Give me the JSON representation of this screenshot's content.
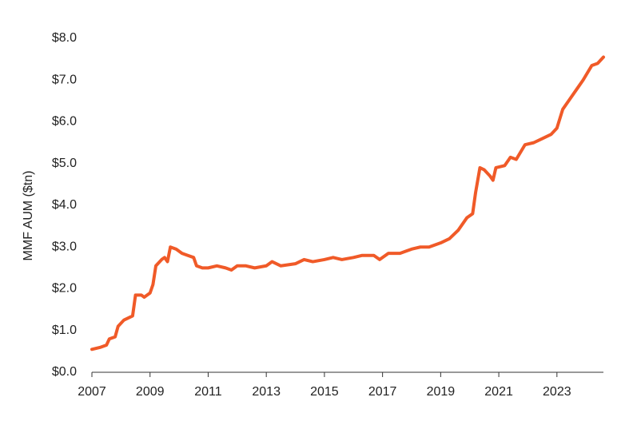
{
  "chart_data": {
    "type": "line",
    "y_label": "MMF AUM ($tn)",
    "x": [
      2007.0,
      2007.3,
      2007.5,
      2007.6,
      2007.8,
      2007.9,
      2008.1,
      2008.4,
      2008.5,
      2008.7,
      2008.8,
      2009.0,
      2009.1,
      2009.2,
      2009.4,
      2009.5,
      2009.6,
      2009.7,
      2009.9,
      2010.1,
      2010.3,
      2010.5,
      2010.6,
      2010.8,
      2011.0,
      2011.3,
      2011.6,
      2011.8,
      2012.0,
      2012.3,
      2012.6,
      2013.0,
      2013.2,
      2013.5,
      2014.0,
      2014.3,
      2014.6,
      2015.0,
      2015.3,
      2015.6,
      2016.0,
      2016.3,
      2016.7,
      2016.9,
      2017.2,
      2017.6,
      2018.0,
      2018.3,
      2018.6,
      2019.0,
      2019.3,
      2019.6,
      2019.9,
      2020.1,
      2020.2,
      2020.35,
      2020.5,
      2020.7,
      2020.8,
      2020.9,
      2021.2,
      2021.4,
      2021.6,
      2021.9,
      2022.2,
      2022.5,
      2022.8,
      2023.0,
      2023.2,
      2023.4,
      2023.7,
      2023.9,
      2024.2,
      2024.4,
      2024.6
    ],
    "series": [
      {
        "color": "#f05a28",
        "values": [
          0.55,
          0.6,
          0.65,
          0.8,
          0.85,
          1.1,
          1.25,
          1.35,
          1.85,
          1.85,
          1.8,
          1.9,
          2.1,
          2.55,
          2.7,
          2.75,
          2.65,
          3.0,
          2.95,
          2.85,
          2.8,
          2.75,
          2.55,
          2.5,
          2.5,
          2.55,
          2.5,
          2.45,
          2.55,
          2.55,
          2.5,
          2.55,
          2.65,
          2.55,
          2.6,
          2.7,
          2.65,
          2.7,
          2.75,
          2.7,
          2.75,
          2.8,
          2.8,
          2.7,
          2.85,
          2.85,
          2.95,
          3.0,
          3.0,
          3.1,
          3.2,
          3.4,
          3.7,
          3.8,
          4.3,
          4.9,
          4.85,
          4.7,
          4.6,
          4.9,
          4.95,
          5.15,
          5.1,
          5.45,
          5.5,
          5.6,
          5.7,
          5.85,
          6.3,
          6.5,
          6.8,
          7.0,
          7.35,
          7.4,
          7.55
        ]
      }
    ],
    "xlim": [
      2007,
      2024.6
    ],
    "xticks": [
      2007,
      2009,
      2011,
      2013,
      2015,
      2017,
      2019,
      2021,
      2023
    ],
    "ylim": [
      0,
      8
    ],
    "yticks": [
      {
        "value": 0,
        "label": "$0.0"
      },
      {
        "value": 1,
        "label": "$1.0"
      },
      {
        "value": 2,
        "label": "$2.0"
      },
      {
        "value": 3,
        "label": "$3.0"
      },
      {
        "value": 4,
        "label": "$4.0"
      },
      {
        "value": 5,
        "label": "$5.0"
      },
      {
        "value": 6,
        "label": "$6.0"
      },
      {
        "value": 7,
        "label": "$7.0"
      },
      {
        "value": 8,
        "label": "$8.0"
      }
    ],
    "grid": false
  }
}
